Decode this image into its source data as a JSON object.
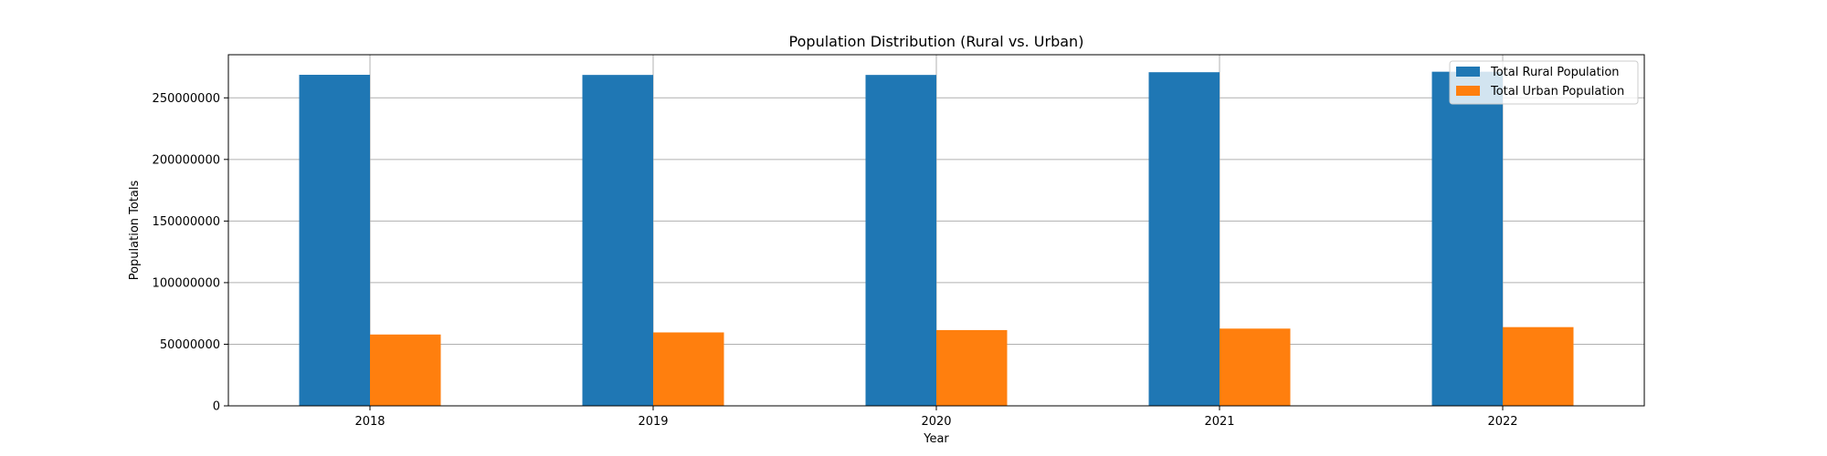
{
  "chart_data": {
    "type": "bar",
    "title": "Population Distribution (Rural vs. Urban)",
    "xlabel": "Year",
    "ylabel": "Population Totals",
    "categories": [
      "2018",
      "2019",
      "2020",
      "2021",
      "2022"
    ],
    "series": [
      {
        "name": "Total Rural Population",
        "color": "#1f77b4",
        "values": [
          268700000,
          268600000,
          268600000,
          270800000,
          271200000
        ]
      },
      {
        "name": "Total Urban Population",
        "color": "#ff7f0e",
        "values": [
          57900000,
          59600000,
          61500000,
          62700000,
          63900000
        ]
      }
    ],
    "ylim": [
      0,
      285000000
    ],
    "yticks": [
      0,
      50000000,
      100000000,
      150000000,
      200000000,
      250000000
    ],
    "ytick_labels": [
      "0",
      "50000000",
      "100000000",
      "150000000",
      "200000000",
      "250000000"
    ],
    "grid": true,
    "legend": "top-right"
  }
}
